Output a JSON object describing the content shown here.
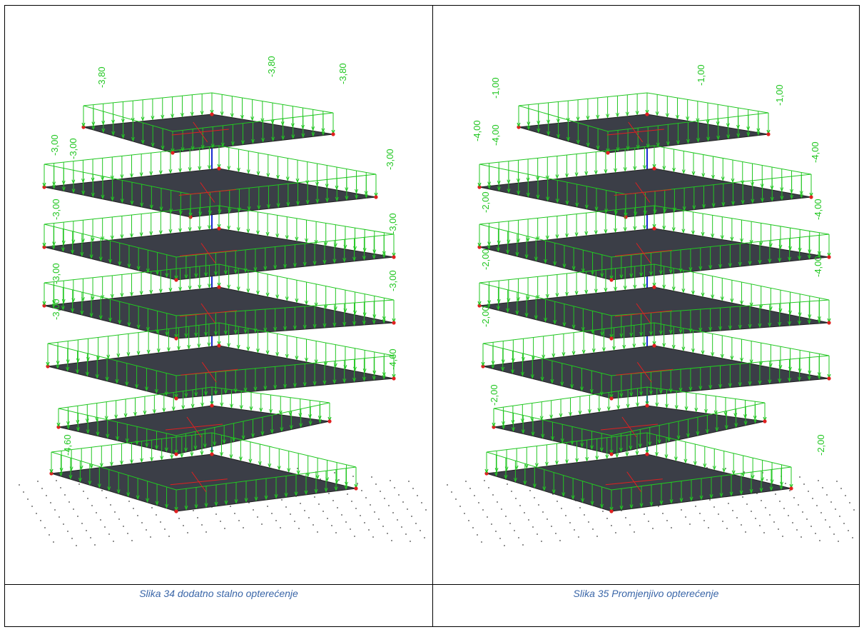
{
  "figures": [
    {
      "caption": "Slika 34 dodatno stalno opterećenje",
      "load_labels": [
        "-3,80",
        "-3,80",
        "-3,80",
        "-3,00",
        "-3,00",
        "-3,00",
        "-3,00",
        "-3,00",
        "-3,00",
        "-3,00",
        "-3,00",
        "-4,60",
        "-4,60"
      ]
    },
    {
      "caption": "Slika 35 Promjenjivo opterećenje",
      "load_labels": [
        "-1,00",
        "-1,00",
        "-1,00",
        "-4,00",
        "-4,00",
        "-4,00",
        "-4,00",
        "-4,00",
        "-2,00",
        "-2,00",
        "-2,00",
        "-2,00",
        "-2,00"
      ]
    }
  ],
  "colors": {
    "slab": "#3b3e47",
    "load_frame": "#22c722",
    "node": "#e02020",
    "axis": "#1a2bd0",
    "caption": "#3a66a8"
  }
}
